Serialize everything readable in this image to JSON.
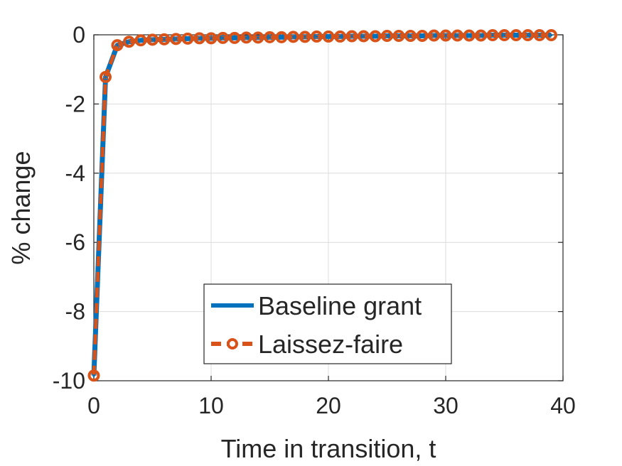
{
  "chart_data": {
    "type": "line",
    "xlabel": "Time in transition, t",
    "ylabel": "% change",
    "xlim": [
      0,
      40
    ],
    "ylim": [
      -10,
      0
    ],
    "x_ticks": [
      "0",
      "10",
      "20",
      "30",
      "40"
    ],
    "y_ticks": [
      "0",
      "-2",
      "-4",
      "-6",
      "-8",
      "-10"
    ],
    "grid": true,
    "legend_position": "lower-center",
    "x": [
      0,
      1,
      2,
      3,
      4,
      5,
      6,
      7,
      8,
      9,
      10,
      11,
      12,
      13,
      14,
      15,
      16,
      17,
      18,
      19,
      20,
      21,
      22,
      23,
      24,
      25,
      26,
      27,
      28,
      29,
      30,
      31,
      32,
      33,
      34,
      35,
      36,
      37,
      38,
      39
    ],
    "series": [
      {
        "name": "Baseline grant",
        "color": "#0072BD",
        "style": "solid",
        "values": [
          -9.85,
          -1.22,
          -0.3,
          -0.2,
          -0.16,
          -0.14,
          -0.13,
          -0.12,
          -0.11,
          -0.1,
          -0.1,
          -0.09,
          -0.09,
          -0.08,
          -0.08,
          -0.07,
          -0.07,
          -0.06,
          -0.06,
          -0.05,
          -0.05,
          -0.05,
          -0.04,
          -0.04,
          -0.04,
          -0.03,
          -0.03,
          -0.03,
          -0.03,
          -0.02,
          -0.02,
          -0.02,
          -0.02,
          -0.02,
          -0.01,
          -0.01,
          -0.01,
          -0.01,
          -0.01,
          -0.01
        ]
      },
      {
        "name": "Laissez-faire",
        "color": "#D95319",
        "style": "dashed-circle",
        "values": [
          -9.85,
          -1.22,
          -0.3,
          -0.2,
          -0.16,
          -0.14,
          -0.13,
          -0.12,
          -0.11,
          -0.1,
          -0.1,
          -0.09,
          -0.09,
          -0.08,
          -0.08,
          -0.07,
          -0.07,
          -0.06,
          -0.06,
          -0.05,
          -0.05,
          -0.05,
          -0.04,
          -0.04,
          -0.04,
          -0.03,
          -0.03,
          -0.03,
          -0.03,
          -0.02,
          -0.02,
          -0.02,
          -0.02,
          -0.02,
          -0.01,
          -0.01,
          -0.01,
          -0.01,
          -0.01,
          -0.01
        ]
      }
    ]
  }
}
